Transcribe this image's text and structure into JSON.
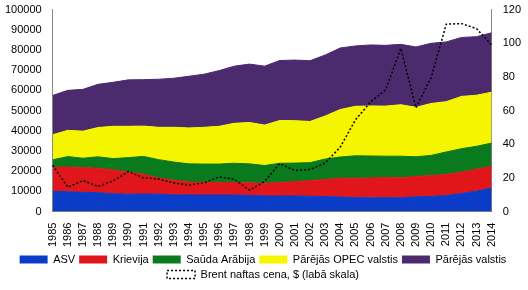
{
  "chart_data": {
    "type": "area",
    "stacked": true,
    "grid": false,
    "legend": "bottom",
    "categories": [
      "1985",
      "1986",
      "1987",
      "1988",
      "1989",
      "1990",
      "1991",
      "1992",
      "1993",
      "1994",
      "1995",
      "1996",
      "1997",
      "1998",
      "1999",
      "2000",
      "2001",
      "2002",
      "2003",
      "2004",
      "2005",
      "2006",
      "2007",
      "2008",
      "2009",
      "2010",
      "2011",
      "2012",
      "2013",
      "2014"
    ],
    "ylim": [
      0,
      100000
    ],
    "yticks": [
      0,
      10000,
      20000,
      30000,
      40000,
      50000,
      60000,
      70000,
      80000,
      90000,
      100000
    ],
    "y2lim": [
      0,
      120
    ],
    "y2ticks": [
      0,
      20,
      40,
      60,
      80,
      100,
      120
    ],
    "series": [
      {
        "name": "ASV",
        "color": "#0a3cc8",
        "values": [
          10000,
          9800,
          9500,
          9300,
          8800,
          8600,
          8700,
          8600,
          8300,
          8200,
          8200,
          8200,
          8200,
          8000,
          7700,
          7700,
          7700,
          7600,
          7400,
          7200,
          6900,
          6800,
          6900,
          6800,
          7300,
          7500,
          7900,
          8900,
          10100,
          11600
        ]
      },
      {
        "name": "Krievija",
        "color": "#e0161b",
        "values": [
          12000,
          12200,
          12300,
          12100,
          11800,
          11000,
          9800,
          8000,
          7200,
          6400,
          6300,
          6100,
          6200,
          6200,
          6300,
          6700,
          7100,
          7700,
          8500,
          9300,
          9600,
          9800,
          10000,
          9900,
          10100,
          10300,
          10500,
          10600,
          10800,
          10800
        ]
      },
      {
        "name": "Saūda Arābija",
        "color": "#0a7a1e",
        "values": [
          3600,
          5200,
          4600,
          5700,
          5600,
          7100,
          8800,
          9100,
          9000,
          9000,
          9000,
          9200,
          9500,
          9400,
          8800,
          9500,
          9200,
          8900,
          10100,
          10500,
          11100,
          10900,
          10500,
          10700,
          9700,
          10000,
          11100,
          11600,
          11400,
          11500
        ]
      },
      {
        "name": "Pārējās OPEC valstis",
        "color": "#f5f500",
        "values": [
          12400,
          13000,
          13400,
          14500,
          16000,
          15500,
          15000,
          16000,
          17200,
          17800,
          18200,
          18700,
          19800,
          20500,
          20000,
          21200,
          21000,
          20400,
          21300,
          23500,
          24500,
          24800,
          24800,
          25500,
          24500,
          25700,
          24900,
          25900,
          25300,
          25200
        ]
      },
      {
        "name": "Pārējās valstis",
        "color": "#4b2b6e",
        "values": [
          19500,
          19800,
          20700,
          21400,
          21800,
          23000,
          23000,
          23800,
          24300,
          25600,
          26300,
          27600,
          28300,
          28900,
          29200,
          29700,
          30000,
          30100,
          30200,
          30500,
          29900,
          30200,
          30100,
          29900,
          29900,
          29800,
          29600,
          29200,
          29000,
          29400
        ]
      },
      {
        "name": "Brent naftas cena, $ (labā skala)",
        "color": "#000000",
        "type": "line",
        "axis": "y2",
        "line_style": "dotted",
        "values": [
          27.5,
          14.4,
          18.4,
          14.9,
          18.2,
          23.7,
          20,
          19.3,
          17,
          15.8,
          17,
          20.6,
          19.1,
          12.7,
          17.9,
          28.5,
          24.4,
          25,
          28.8,
          38.3,
          54.5,
          65.1,
          72.4,
          97,
          61.7,
          79.5,
          111.3,
          111.7,
          108.7,
          99
        ]
      }
    ]
  }
}
